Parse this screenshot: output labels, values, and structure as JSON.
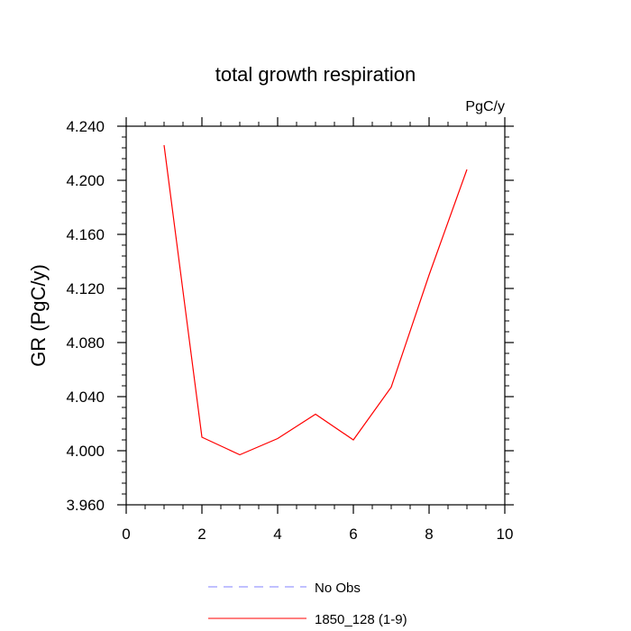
{
  "chart_data": {
    "type": "line",
    "title": "total growth respiration",
    "units_label": "PgC/y",
    "xlabel": "",
    "ylabel": "GR  (PgC/y)",
    "xlim": [
      0,
      10
    ],
    "ylim": [
      3.96,
      4.24
    ],
    "x_ticks": [
      "0",
      "2",
      "4",
      "6",
      "8",
      "10"
    ],
    "y_ticks": [
      "4.240",
      "4.200",
      "4.160",
      "4.120",
      "4.080",
      "4.040",
      "4.000",
      "3.960"
    ],
    "grid": false,
    "legend_position": "bottom-center",
    "series": [
      {
        "name": "1850_128 (1-9)",
        "color": "#ff0000",
        "dash": "solid",
        "x": [
          1,
          2,
          3,
          4,
          5,
          6,
          7,
          8,
          9
        ],
        "values": [
          4.226,
          4.01,
          3.997,
          4.009,
          4.027,
          4.008,
          4.047,
          4.13,
          4.208
        ]
      }
    ],
    "legend": [
      {
        "label": "No Obs",
        "color": "#8080ff",
        "dash": "dashed"
      },
      {
        "label": "1850_128 (1-9)",
        "color": "#ff0000",
        "dash": "solid"
      }
    ]
  }
}
